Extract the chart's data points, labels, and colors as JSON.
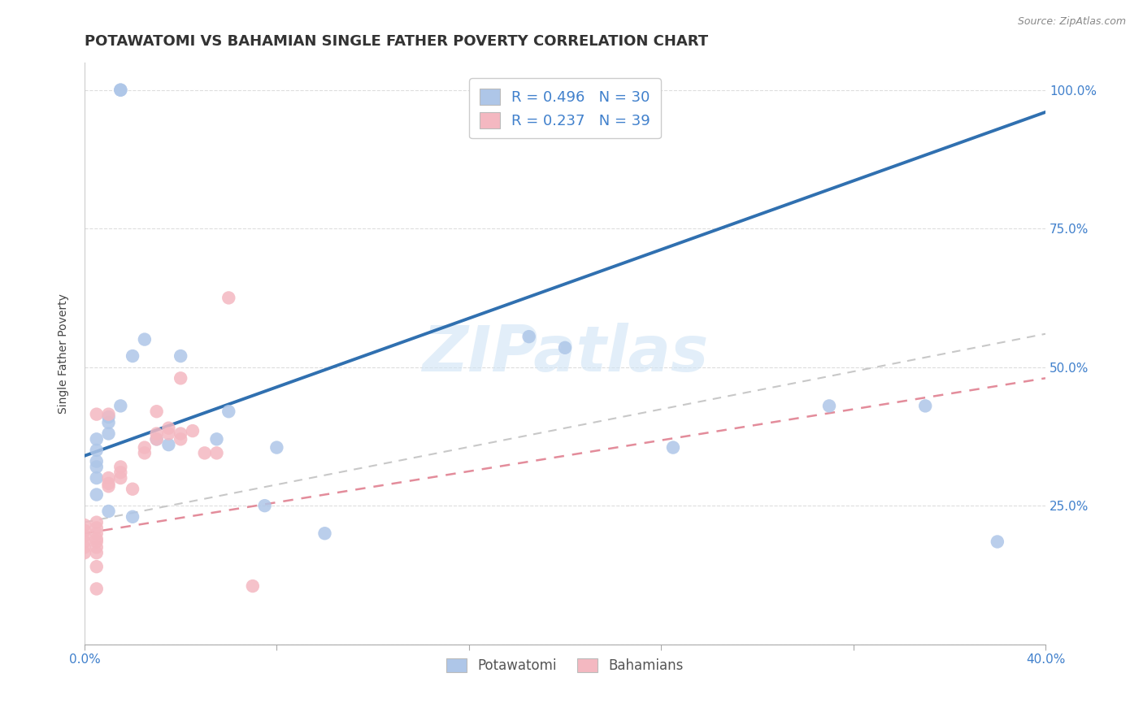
{
  "title": "POTAWATOMI VS BAHAMIAN SINGLE FATHER POVERTY CORRELATION CHART",
  "source": "Source: ZipAtlas.com",
  "ylabel_label": "Single Father Poverty",
  "xlim": [
    0.0,
    0.4
  ],
  "ylim": [
    0.0,
    1.05
  ],
  "xticks": [
    0.0,
    0.08,
    0.16,
    0.24,
    0.32,
    0.4
  ],
  "xtick_labels": [
    "0.0%",
    "",
    "",
    "",
    "",
    "40.0%"
  ],
  "ytick_positions": [
    0.0,
    0.25,
    0.5,
    0.75,
    1.0
  ],
  "ytick_labels_right": [
    "",
    "25.0%",
    "50.0%",
    "75.0%",
    "100.0%"
  ],
  "watermark": "ZIPatlas",
  "blue_scatter_color": "#aec6e8",
  "pink_scatter_color": "#f4b8c1",
  "blue_line_color": "#3070b0",
  "pink_dashed_color": "#e08090",
  "gray_dashed_color": "#c8c8c8",
  "legend_label_blue": "R = 0.496   N = 30",
  "legend_label_pink": "R = 0.237   N = 39",
  "legend_bottom_blue": "Potawatomi",
  "legend_bottom_pink": "Bahamians",
  "potawatomi_x": [
    0.015,
    0.015,
    0.005,
    0.005,
    0.005,
    0.005,
    0.005,
    0.01,
    0.01,
    0.01,
    0.015,
    0.02,
    0.025,
    0.03,
    0.035,
    0.04,
    0.055,
    0.06,
    0.075,
    0.08,
    0.1,
    0.185,
    0.2,
    0.245,
    0.31,
    0.35,
    0.38,
    0.005,
    0.01,
    0.02
  ],
  "potawatomi_y": [
    1.0,
    1.0,
    0.37,
    0.35,
    0.33,
    0.3,
    0.27,
    0.4,
    0.41,
    0.38,
    0.43,
    0.52,
    0.55,
    0.37,
    0.36,
    0.52,
    0.37,
    0.42,
    0.25,
    0.355,
    0.2,
    0.555,
    0.535,
    0.355,
    0.43,
    0.43,
    0.185,
    0.32,
    0.24,
    0.23
  ],
  "bahamian_x": [
    0.0,
    0.0,
    0.0,
    0.0,
    0.0,
    0.0,
    0.005,
    0.005,
    0.005,
    0.005,
    0.005,
    0.005,
    0.005,
    0.005,
    0.005,
    0.01,
    0.01,
    0.01,
    0.015,
    0.015,
    0.015,
    0.02,
    0.025,
    0.025,
    0.03,
    0.03,
    0.035,
    0.035,
    0.04,
    0.04,
    0.045,
    0.05,
    0.055,
    0.06,
    0.07,
    0.005,
    0.01,
    0.03,
    0.04
  ],
  "bahamian_y": [
    0.215,
    0.205,
    0.195,
    0.185,
    0.175,
    0.165,
    0.22,
    0.21,
    0.2,
    0.19,
    0.185,
    0.175,
    0.165,
    0.14,
    0.1,
    0.3,
    0.29,
    0.285,
    0.32,
    0.31,
    0.3,
    0.28,
    0.355,
    0.345,
    0.38,
    0.37,
    0.39,
    0.38,
    0.38,
    0.37,
    0.385,
    0.345,
    0.345,
    0.625,
    0.105,
    0.415,
    0.415,
    0.42,
    0.48
  ],
  "grid_color": "#dddddd",
  "background_color": "#ffffff",
  "title_fontsize": 13,
  "axis_label_fontsize": 10,
  "tick_fontsize": 11,
  "tick_color": "#4080cc",
  "blue_line_intercept": 0.34,
  "blue_line_slope": 1.55,
  "pink_dashed_intercept": 0.2,
  "pink_dashed_slope": 0.7,
  "gray_dashed_intercept": 0.22,
  "gray_dashed_slope": 0.85
}
